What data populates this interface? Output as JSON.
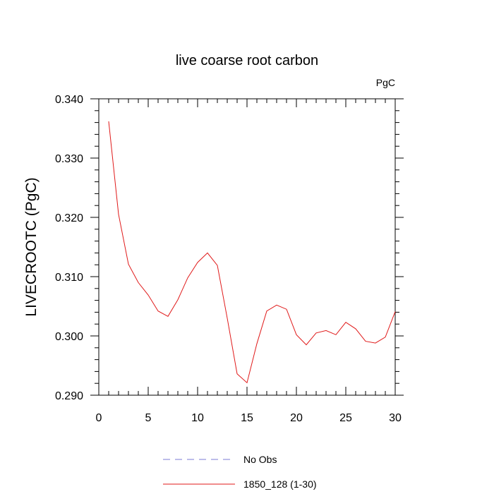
{
  "chart_data": {
    "type": "line",
    "title": "live coarse root carbon",
    "units_label": "PgC",
    "xlabel": "",
    "ylabel": "LIVECROOTC  (PgC)",
    "xlim": [
      0,
      30
    ],
    "ylim": [
      0.29,
      0.34
    ],
    "x_ticks": [
      0,
      5,
      10,
      15,
      20,
      25,
      30
    ],
    "x_tick_labels": [
      "0",
      "5",
      "10",
      "15",
      "20",
      "25",
      "30"
    ],
    "y_ticks": [
      0.29,
      0.3,
      0.31,
      0.32,
      0.33,
      0.34
    ],
    "y_tick_labels": [
      "0.290",
      "0.300",
      "0.310",
      "0.320",
      "0.330",
      "0.340"
    ],
    "grid": false,
    "legend_position": "bottom",
    "legend": [
      {
        "label": "No Obs",
        "color": "#7b7bd6",
        "dash": "dashed"
      },
      {
        "label": "1850_128 (1-30)",
        "color": "#e01a1a",
        "dash": "solid"
      }
    ],
    "series": [
      {
        "name": "1850_128 (1-30)",
        "color": "#e01a1a",
        "x": [
          1,
          2,
          3,
          4,
          5,
          6,
          7,
          8,
          9,
          10,
          11,
          12,
          13,
          14,
          15,
          16,
          17,
          18,
          19,
          20,
          21,
          22,
          23,
          24,
          25,
          26,
          27,
          28,
          29,
          30
        ],
        "y": [
          0.3362,
          0.3205,
          0.3121,
          0.309,
          0.3069,
          0.3042,
          0.3033,
          0.3061,
          0.3098,
          0.3124,
          0.314,
          0.3119,
          0.303,
          0.2936,
          0.2921,
          0.2987,
          0.3042,
          0.3052,
          0.3045,
          0.3002,
          0.2985,
          0.3005,
          0.3009,
          0.3002,
          0.3023,
          0.3012,
          0.2991,
          0.2988,
          0.2998,
          0.3041
        ]
      }
    ]
  }
}
